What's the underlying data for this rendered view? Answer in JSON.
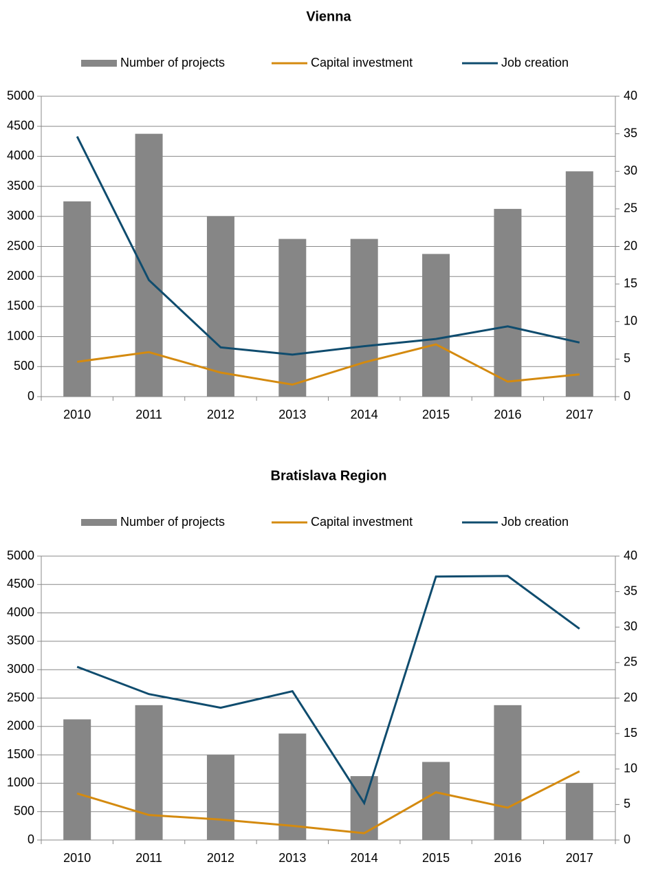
{
  "chart_data": [
    {
      "type": "bar_line",
      "title": "Vienna",
      "categories": [
        "2010",
        "2011",
        "2012",
        "2013",
        "2014",
        "2015",
        "2016",
        "2017"
      ],
      "series": [
        {
          "name": "Number of projects",
          "type": "bar",
          "axis": "y2",
          "color": "#868686",
          "values": [
            26,
            35,
            24,
            21,
            21,
            19,
            25,
            30
          ]
        },
        {
          "name": "Capital investment",
          "type": "line",
          "color": "#d48a0f",
          "values": [
            580,
            740,
            400,
            200,
            570,
            870,
            250,
            370
          ]
        },
        {
          "name": "Job creation",
          "type": "line",
          "color": "#0f4c6e",
          "values": [
            4330,
            1940,
            820,
            700,
            840,
            960,
            1170,
            900
          ]
        }
      ],
      "ylim": [
        0,
        5000
      ],
      "yticks": [
        0,
        500,
        1000,
        1500,
        2000,
        2500,
        3000,
        3500,
        4000,
        4500,
        5000
      ],
      "y2lim": [
        0,
        40
      ],
      "y2ticks": [
        0,
        5,
        10,
        15,
        20,
        25,
        30,
        35,
        40
      ],
      "grid": true,
      "legend": "top"
    },
    {
      "type": "bar_line",
      "title": "Bratislava Region",
      "categories": [
        "2010",
        "2011",
        "2012",
        "2013",
        "2014",
        "2015",
        "2016",
        "2017"
      ],
      "series": [
        {
          "name": "Number of projects",
          "type": "bar",
          "axis": "y2",
          "color": "#868686",
          "values": [
            17,
            19,
            12,
            15,
            9,
            11,
            19,
            8
          ]
        },
        {
          "name": "Capital investment",
          "type": "line",
          "color": "#d48a0f",
          "values": [
            820,
            440,
            360,
            250,
            120,
            840,
            570,
            1210
          ]
        },
        {
          "name": "Job creation",
          "type": "line",
          "color": "#0f4c6e",
          "values": [
            3050,
            2570,
            2330,
            2620,
            650,
            4640,
            4650,
            3720
          ]
        }
      ],
      "ylim": [
        0,
        5000
      ],
      "yticks": [
        0,
        500,
        1000,
        1500,
        2000,
        2500,
        3000,
        3500,
        4000,
        4500,
        5000
      ],
      "y2lim": [
        0,
        40
      ],
      "y2ticks": [
        0,
        5,
        10,
        15,
        20,
        25,
        30,
        35,
        40
      ],
      "grid": true,
      "legend": "top"
    }
  ]
}
